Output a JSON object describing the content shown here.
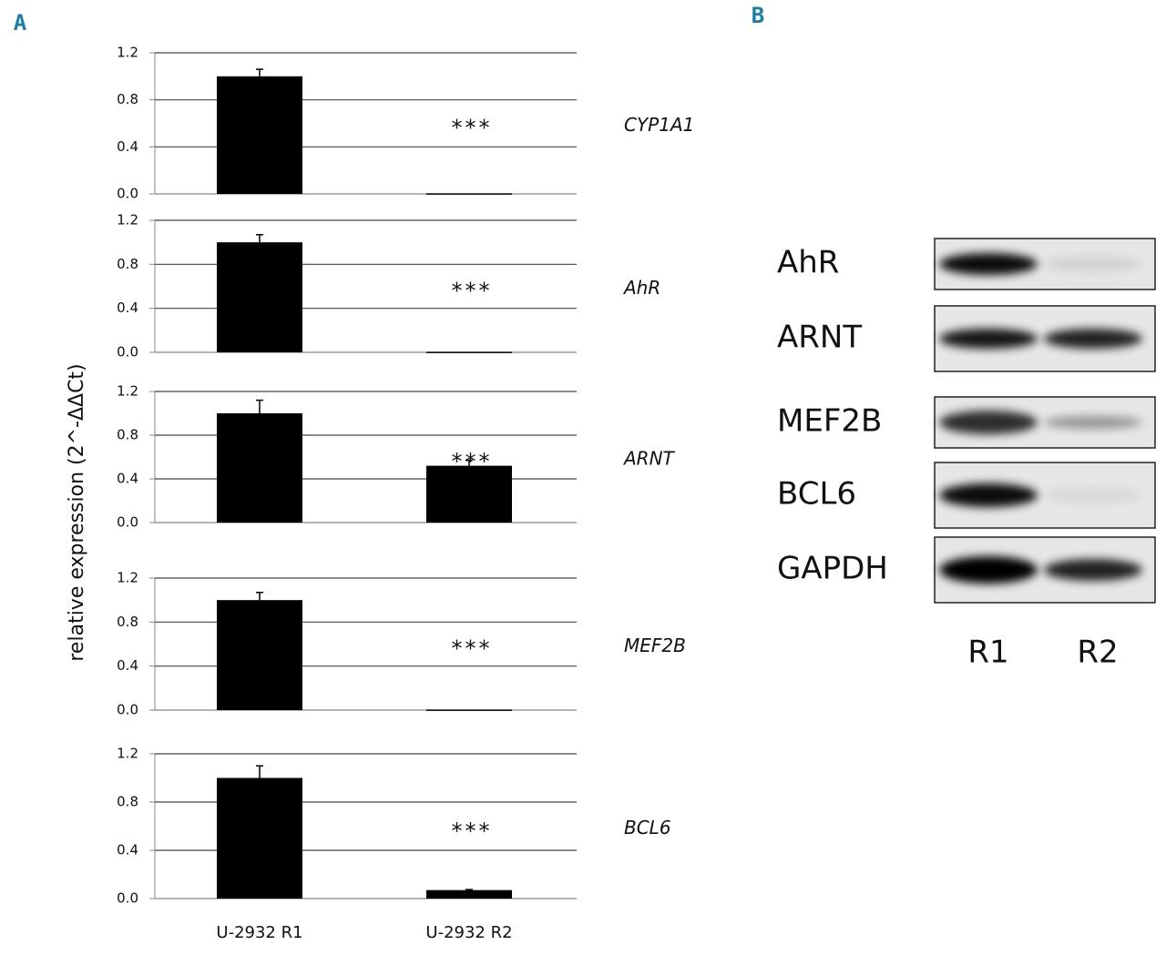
{
  "panel_labels": [
    "A",
    "B"
  ],
  "ylabel": "relative expression (2^-ΔΔCt)",
  "chart_data": [
    {
      "type": "bar",
      "title": "CYP1A1",
      "annotation": "***",
      "categories": [
        null,
        null
      ],
      "values": [
        1.0,
        0.005
      ],
      "errors": [
        0.06,
        0
      ],
      "color": "#000000",
      "ylim": [
        0,
        1.2
      ],
      "yticks": [
        {
          "value": 0,
          "label": "0.0"
        },
        0.4,
        0.8,
        1.2
      ],
      "grid": true
    },
    {
      "type": "bar",
      "title": "AhR",
      "annotation": "***",
      "categories": [
        null,
        null
      ],
      "values": [
        1.0,
        0.005
      ],
      "errors": [
        0.07,
        0
      ],
      "color": "#000000",
      "ylim": [
        0,
        1.2
      ],
      "yticks": [
        {
          "value": 0,
          "label": "0.0"
        },
        0.4,
        0.8,
        1.2
      ],
      "grid": true
    },
    {
      "type": "bar",
      "title": "ARNT",
      "annotation": "***",
      "categories": [
        null,
        null
      ],
      "values": [
        1.0,
        0.52
      ],
      "errors": [
        0.12,
        0.05
      ],
      "color": "#000000",
      "ylim": [
        0,
        1.2
      ],
      "yticks": [
        {
          "value": 0,
          "label": "0.0"
        },
        0.4,
        0.8,
        1.2
      ],
      "grid": true
    },
    {
      "type": "bar",
      "title": "MEF2B",
      "annotation": "***",
      "categories": [
        null,
        null
      ],
      "values": [
        1.0,
        0.005
      ],
      "errors": [
        0.07,
        0
      ],
      "color": "#000000",
      "ylim": [
        0,
        1.2
      ],
      "yticks": [
        {
          "value": 0,
          "label": "0.0"
        },
        0.4,
        0.8,
        1.2
      ],
      "grid": true
    },
    {
      "type": "bar",
      "title": "BCL6",
      "annotation": "***",
      "categories": [
        "U-2932 R1",
        "U-2932 R2"
      ],
      "values": [
        1.0,
        0.07
      ],
      "errors": [
        0.1,
        0.005
      ],
      "color": "#000000",
      "ylim": [
        0,
        1.2
      ],
      "yticks": [
        {
          "value": 0,
          "label": "0.0"
        },
        0.4,
        0.8,
        1.2
      ],
      "grid": true
    }
  ],
  "blot": {
    "rows": [
      "AhR",
      "ARNT",
      "MEF2B",
      "BCL6",
      "GAPDH"
    ],
    "lanes": [
      "R1",
      "R2"
    ]
  }
}
